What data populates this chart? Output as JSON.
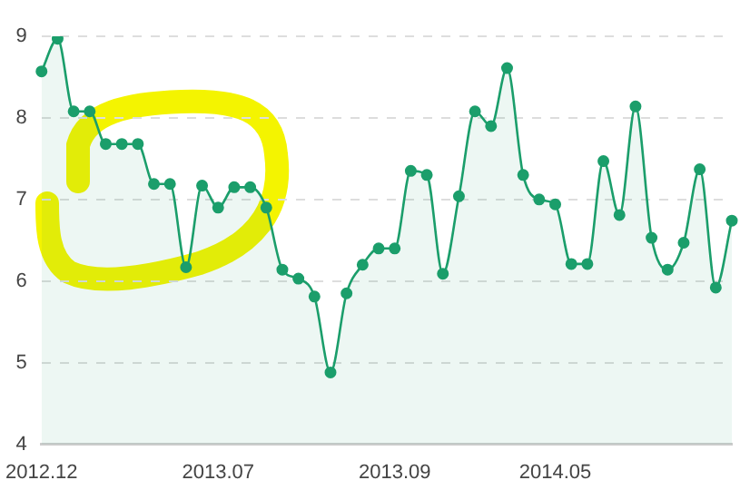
{
  "chart_data": {
    "type": "area",
    "categories": [
      "2012.12",
      null,
      null,
      null,
      null,
      null,
      null,
      null,
      null,
      null,
      null,
      "2013.07",
      null,
      null,
      null,
      null,
      null,
      null,
      null,
      null,
      null,
      null,
      "2013.09",
      null,
      null,
      null,
      null,
      null,
      null,
      null,
      null,
      null,
      "2014.05",
      null,
      null,
      null,
      null,
      null,
      null,
      null,
      null,
      null,
      null,
      null
    ],
    "values": [
      8.57,
      8.97,
      8.08,
      8.08,
      7.68,
      7.68,
      7.68,
      7.19,
      7.19,
      6.17,
      7.17,
      6.9,
      7.15,
      7.15,
      6.9,
      6.14,
      6.03,
      5.81,
      4.88,
      5.85,
      6.2,
      6.4,
      6.4,
      7.35,
      7.3,
      6.09,
      7.04,
      8.08,
      7.9,
      8.61,
      7.3,
      7.0,
      6.94,
      6.21,
      6.21,
      7.47,
      6.81,
      8.14,
      6.53,
      6.14,
      6.47,
      7.37,
      5.92,
      6.74
    ],
    "color": "#1b9e6b",
    "ylim": [
      4,
      9
    ],
    "yticks": [
      4,
      5,
      6,
      7,
      8,
      9
    ],
    "grid": "y",
    "marker": "circle",
    "line_style": "solid"
  }
}
